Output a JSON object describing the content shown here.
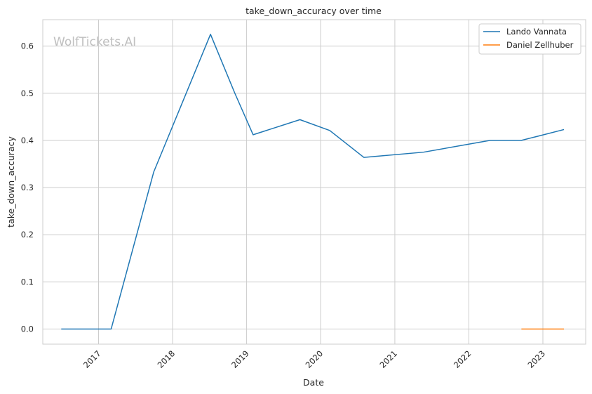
{
  "watermark": "WolfTickets.AI",
  "chart_data": {
    "type": "line",
    "title": "take_down_accuracy over time",
    "xlabel": "Date",
    "ylabel": "take_down_accuracy",
    "xlim": [
      "2016-04-01",
      "2023-07-31"
    ],
    "ylim": [
      -0.032,
      0.656
    ],
    "x_ticks": [
      "2017",
      "2018",
      "2019",
      "2020",
      "2021",
      "2022",
      "2023"
    ],
    "y_ticks": [
      "0.0",
      "0.1",
      "0.2",
      "0.3",
      "0.4",
      "0.5",
      "0.6"
    ],
    "grid": true,
    "legend_position": "top-right",
    "series": [
      {
        "name": "Lando Vannata",
        "color": "#1f77b4",
        "points": [
          [
            "2016-07-01",
            0.0
          ],
          [
            "2017-03-04",
            0.0
          ],
          [
            "2017-09-30",
            0.333
          ],
          [
            "2018-07-07",
            0.625
          ],
          [
            "2018-11-04",
            0.5
          ],
          [
            "2019-02-02",
            0.412
          ],
          [
            "2019-09-21",
            0.444
          ],
          [
            "2020-02-15",
            0.421
          ],
          [
            "2020-08-01",
            0.364
          ],
          [
            "2021-05-22",
            0.375
          ],
          [
            "2022-04-16",
            0.4
          ],
          [
            "2022-09-17",
            0.4
          ],
          [
            "2023-04-15",
            0.423
          ]
        ]
      },
      {
        "name": "Daniel Zellhuber",
        "color": "#ff7f0e",
        "points": [
          [
            "2022-09-17",
            0.0
          ],
          [
            "2023-04-15",
            0.0
          ]
        ]
      }
    ]
  }
}
